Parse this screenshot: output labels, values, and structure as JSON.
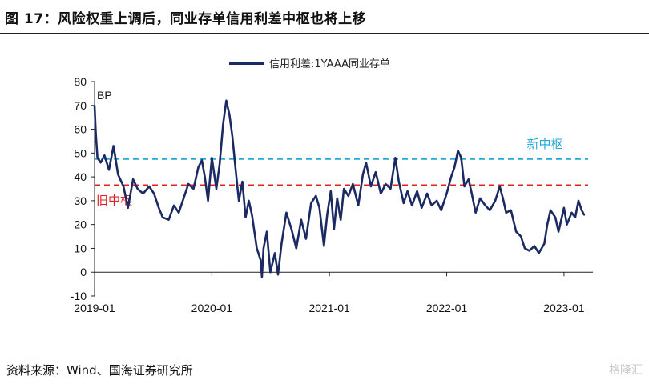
{
  "header": {
    "title": "图 17：风险权重上调后，同业存单信用利差中枢也将上移"
  },
  "footer": {
    "source": "资料来源：Wind、国海证券研究所",
    "watermark": "格隆汇"
  },
  "chart_data": {
    "type": "line",
    "title": "",
    "xlabel": "",
    "ylabel": "",
    "y_unit_label": "BP",
    "ylim": [
      -10,
      80
    ],
    "yticks": [
      -10,
      0,
      10,
      20,
      30,
      40,
      50,
      60,
      70,
      80
    ],
    "xlim": [
      "2019-01-01",
      "2023-04-01"
    ],
    "xticks": [
      "2019-01",
      "2020-01",
      "2021-01",
      "2022-01",
      "2023-01"
    ],
    "grid": false,
    "legend_position": "top-center",
    "series": [
      {
        "name": "信用利差:1YAAA同业存单",
        "color": "#1b2a63",
        "points": [
          [
            "2019-01-01",
            70
          ],
          [
            "2019-01-05",
            58
          ],
          [
            "2019-01-10",
            48
          ],
          [
            "2019-01-20",
            46
          ],
          [
            "2019-02-01",
            49
          ],
          [
            "2019-02-15",
            43
          ],
          [
            "2019-03-01",
            53
          ],
          [
            "2019-03-15",
            41
          ],
          [
            "2019-04-01",
            36
          ],
          [
            "2019-04-15",
            27
          ],
          [
            "2019-05-01",
            39
          ],
          [
            "2019-05-15",
            35
          ],
          [
            "2019-06-01",
            33
          ],
          [
            "2019-06-20",
            36
          ],
          [
            "2019-07-05",
            33
          ],
          [
            "2019-07-20",
            27
          ],
          [
            "2019-08-01",
            23
          ],
          [
            "2019-08-20",
            22
          ],
          [
            "2019-09-05",
            28
          ],
          [
            "2019-09-20",
            25
          ],
          [
            "2019-10-05",
            31
          ],
          [
            "2019-10-20",
            37
          ],
          [
            "2019-11-05",
            35
          ],
          [
            "2019-11-20",
            44
          ],
          [
            "2019-12-01",
            47
          ],
          [
            "2019-12-10",
            40
          ],
          [
            "2019-12-20",
            30
          ],
          [
            "2020-01-01",
            48
          ],
          [
            "2020-01-15",
            35
          ],
          [
            "2020-01-25",
            45
          ],
          [
            "2020-02-05",
            62
          ],
          [
            "2020-02-15",
            72
          ],
          [
            "2020-02-25",
            66
          ],
          [
            "2020-03-05",
            57
          ],
          [
            "2020-03-15",
            43
          ],
          [
            "2020-03-25",
            30
          ],
          [
            "2020-04-05",
            38
          ],
          [
            "2020-04-15",
            23
          ],
          [
            "2020-04-25",
            30
          ],
          [
            "2020-05-05",
            24
          ],
          [
            "2020-05-20",
            10
          ],
          [
            "2020-06-01",
            5
          ],
          [
            "2020-06-05",
            -2
          ],
          [
            "2020-06-10",
            10
          ],
          [
            "2020-06-20",
            17
          ],
          [
            "2020-07-01",
            0
          ],
          [
            "2020-07-15",
            8
          ],
          [
            "2020-07-25",
            -1
          ],
          [
            "2020-08-05",
            12
          ],
          [
            "2020-08-20",
            25
          ],
          [
            "2020-09-05",
            18
          ],
          [
            "2020-09-20",
            10
          ],
          [
            "2020-10-05",
            22
          ],
          [
            "2020-10-20",
            14
          ],
          [
            "2020-11-05",
            29
          ],
          [
            "2020-11-20",
            32
          ],
          [
            "2020-12-01",
            27
          ],
          [
            "2020-12-15",
            11
          ],
          [
            "2020-12-25",
            24
          ],
          [
            "2021-01-05",
            34
          ],
          [
            "2021-01-15",
            18
          ],
          [
            "2021-01-25",
            31
          ],
          [
            "2021-02-05",
            22
          ],
          [
            "2021-02-15",
            35
          ],
          [
            "2021-03-01",
            32
          ],
          [
            "2021-03-15",
            37
          ],
          [
            "2021-04-01",
            28
          ],
          [
            "2021-04-15",
            41
          ],
          [
            "2021-04-25",
            46
          ],
          [
            "2021-05-10",
            36
          ],
          [
            "2021-05-25",
            42
          ],
          [
            "2021-06-10",
            33
          ],
          [
            "2021-06-25",
            37
          ],
          [
            "2021-07-10",
            35
          ],
          [
            "2021-07-25",
            48
          ],
          [
            "2021-08-05",
            38
          ],
          [
            "2021-08-20",
            29
          ],
          [
            "2021-09-01",
            34
          ],
          [
            "2021-09-15",
            28
          ],
          [
            "2021-10-01",
            34
          ],
          [
            "2021-10-15",
            27
          ],
          [
            "2021-11-01",
            33
          ],
          [
            "2021-11-15",
            28
          ],
          [
            "2021-12-01",
            30
          ],
          [
            "2021-12-15",
            26
          ],
          [
            "2022-01-01",
            33
          ],
          [
            "2022-01-15",
            40
          ],
          [
            "2022-01-25",
            44
          ],
          [
            "2022-02-05",
            51
          ],
          [
            "2022-02-15",
            48
          ],
          [
            "2022-02-25",
            36
          ],
          [
            "2022-03-10",
            39
          ],
          [
            "2022-03-20",
            33
          ],
          [
            "2022-04-01",
            25
          ],
          [
            "2022-04-15",
            31
          ],
          [
            "2022-05-01",
            28
          ],
          [
            "2022-05-15",
            26
          ],
          [
            "2022-06-01",
            30
          ],
          [
            "2022-06-15",
            36
          ],
          [
            "2022-06-25",
            31
          ],
          [
            "2022-07-05",
            25
          ],
          [
            "2022-07-20",
            26
          ],
          [
            "2022-08-05",
            17
          ],
          [
            "2022-08-20",
            15
          ],
          [
            "2022-09-01",
            10
          ],
          [
            "2022-09-15",
            9
          ],
          [
            "2022-10-01",
            11
          ],
          [
            "2022-10-15",
            8
          ],
          [
            "2022-11-01",
            12
          ],
          [
            "2022-11-10",
            20
          ],
          [
            "2022-11-20",
            26
          ],
          [
            "2022-12-05",
            23
          ],
          [
            "2022-12-15",
            17
          ],
          [
            "2023-01-01",
            27
          ],
          [
            "2023-01-10",
            20
          ],
          [
            "2023-01-25",
            25
          ],
          [
            "2023-02-05",
            23
          ],
          [
            "2023-02-15",
            30
          ],
          [
            "2023-02-25",
            26
          ],
          [
            "2023-03-05",
            24
          ]
        ]
      }
    ],
    "reference_lines": [
      {
        "label": "新中枢",
        "value": 47.5,
        "color": "#24a9d8"
      },
      {
        "label": "旧中枢",
        "value": 36.5,
        "color": "#e41f1f"
      }
    ]
  }
}
